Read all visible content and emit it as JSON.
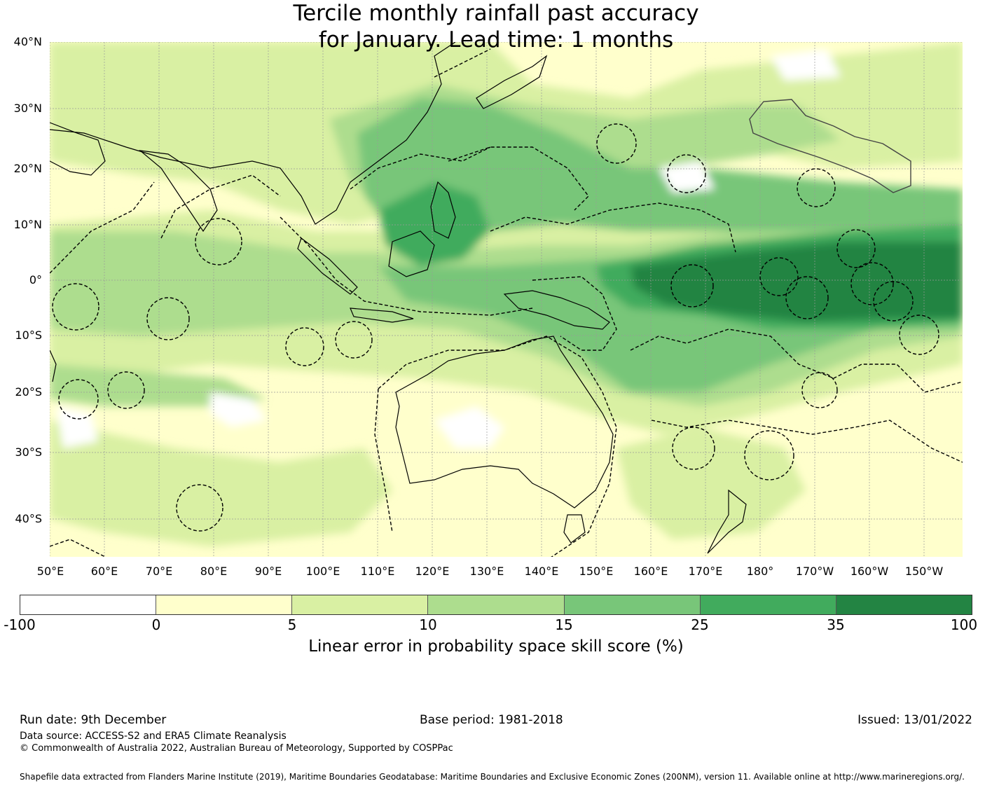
{
  "title": {
    "line1": "Tercile monthly rainfall past accuracy",
    "line2": "for January. Lead time: 1 months"
  },
  "map": {
    "lat_labels": [
      "40°N",
      "30°N",
      "20°N",
      "10°N",
      "0°",
      "10°S",
      "20°S",
      "30°S",
      "40°S"
    ],
    "lon_labels": [
      "50°E",
      "60°E",
      "70°E",
      "80°E",
      "90°E",
      "100°E",
      "110°E",
      "120°E",
      "130°E",
      "140°E",
      "150°E",
      "160°E",
      "170°E",
      "180°",
      "170°W",
      "160°W",
      "150°W"
    ]
  },
  "colorbar": {
    "ticks": [
      "-100",
      "0",
      "5",
      "10",
      "15",
      "25",
      "35",
      "100"
    ],
    "colors": [
      "#ffffff",
      "#ffffcc",
      "#d9f0a3",
      "#addd8e",
      "#78c679",
      "#41ab5d",
      "#238443"
    ],
    "label": "Linear error in probability space skill score (%)"
  },
  "footer": {
    "run_date": "Run date: 9th December",
    "base_period": "Base period: 1981-2018",
    "issued": "Issued: 13/01/2022",
    "data_source": "Data source: ACCESS-S2 and ERA5 Climate Reanalysis",
    "copyright": "© Commonwealth of Australia 2022, Australian Bureau of Meteorology, Supported by COSPPac",
    "shapefile": "Shapefile data extracted from Flanders Marine Institute (2019), Maritime Boundaries Geodatabase: Maritime Boundaries and Exclusive Economic Zones (200NM), version 11. Available online at http://www.marineregions.org/."
  }
}
